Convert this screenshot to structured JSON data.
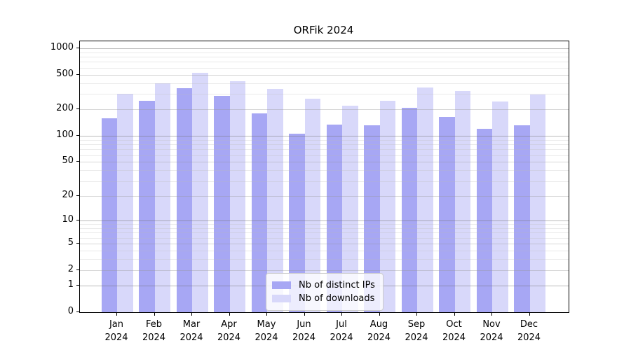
{
  "title": "ORFik 2024",
  "colors": {
    "bar_distinct_ips": "#a7a7f4",
    "bar_downloads": "#d8d8fa",
    "axis": "#000000",
    "grid_power10": "#b3b3b3",
    "grid_labeled": "#cfcfcf",
    "grid_minor": "#e8e8e8",
    "background": "#ffffff",
    "legend_border": "#cccccc"
  },
  "chart_data": {
    "type": "bar",
    "title": "ORFik 2024",
    "x_categories": [
      "Jan",
      "Feb",
      "Mar",
      "Apr",
      "May",
      "Jun",
      "Jul",
      "Aug",
      "Sep",
      "Oct",
      "Nov",
      "Dec"
    ],
    "x_year": "2024",
    "series": [
      {
        "name": "Nb of distinct IPs",
        "color": "#a7a7f4",
        "values": [
          160,
          250,
          350,
          285,
          180,
          105,
          135,
          131,
          210,
          166,
          120,
          133
        ]
      },
      {
        "name": "Nb of downloads",
        "color": "#d8d8fa",
        "values": [
          300,
          400,
          520,
          420,
          345,
          265,
          220,
          250,
          355,
          325,
          245,
          296
        ]
      }
    ],
    "y_scale": "log10(1+x)",
    "y_ticks": [
      0,
      1,
      2,
      5,
      10,
      20,
      50,
      100,
      200,
      500,
      1000
    ],
    "ylim": [
      0,
      1200
    ],
    "grid": true,
    "legend_position": "inside-bottom-center"
  }
}
